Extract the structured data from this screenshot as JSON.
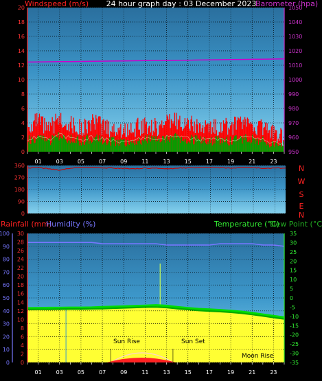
{
  "title": "24 hour graph day : 03 December 2023",
  "colors": {
    "wind": "#ff0000",
    "gust_fill": "#ff0000",
    "avg_fill": "#00a000",
    "barometer": "#cc00cc",
    "direction": "#cc0000",
    "rain": "#ff0000",
    "humidity": "#7777ff",
    "temperature": "#00dd00",
    "dewpoint": "#00aa00",
    "fill_yellow": "#ffff33",
    "sun": "#ffd0d0"
  },
  "chart_data": [
    {
      "type": "line",
      "id": "wind_barometer",
      "left_label": "Windspeed (m/s)",
      "right_label": "Barometer (hpa)",
      "y_left": {
        "min": 0,
        "max": 20,
        "ticks": [
          "0",
          "2",
          "4",
          "6",
          "8",
          "10",
          "12",
          "14",
          "16",
          "18",
          "20"
        ]
      },
      "y_right": {
        "min": 950,
        "max": 1050,
        "ticks": [
          "950",
          "960",
          "970",
          "980",
          "990",
          "1000",
          "1010",
          "1020",
          "1030",
          "1040",
          "1050"
        ]
      },
      "x_ticks": [
        "01",
        "03",
        "05",
        "07",
        "09",
        "11",
        "13",
        "15",
        "17",
        "19",
        "21",
        "23"
      ],
      "x": [
        0,
        1,
        2,
        3,
        4,
        5,
        6,
        7,
        8,
        9,
        10,
        11,
        12,
        13,
        14,
        15,
        16,
        17,
        18,
        19,
        20,
        21,
        22,
        23,
        24
      ],
      "barometer": [
        1012.2,
        1012.3,
        1012.4,
        1012.5,
        1012.5,
        1012.6,
        1012.7,
        1012.8,
        1012.9,
        1013.0,
        1013.1,
        1013.2,
        1013.3,
        1013.3,
        1013.4,
        1013.5,
        1013.6,
        1013.7,
        1013.8,
        1013.9,
        1014.0,
        1014.1,
        1014.2,
        1014.3,
        1014.4
      ],
      "wind_gust": [
        3.5,
        4.2,
        3.0,
        4.6,
        3.8,
        3.2,
        4.0,
        3.6,
        3.1,
        2.9,
        3.3,
        3.7,
        3.4,
        3.9,
        4.4,
        3.8,
        3.5,
        3.2,
        3.6,
        3.4,
        3.9,
        3.7,
        3.3,
        2.6,
        1.9
      ],
      "wind_avg": [
        1.6,
        1.9,
        1.4,
        2.1,
        1.8,
        1.5,
        1.8,
        1.6,
        1.4,
        1.3,
        1.5,
        1.7,
        1.6,
        1.8,
        2.0,
        1.7,
        1.6,
        1.5,
        1.6,
        1.5,
        1.8,
        1.7,
        1.5,
        1.1,
        0.9
      ]
    },
    {
      "type": "line",
      "id": "wind_direction",
      "y_ticks": [
        "0",
        "90",
        "180",
        "270",
        "360"
      ],
      "compass": [
        "N",
        "W",
        "S",
        "E",
        "N"
      ],
      "y": {
        "min": 0,
        "max": 360
      },
      "x": [
        0,
        1,
        2,
        3,
        4,
        5,
        6,
        7,
        8,
        9,
        10,
        11,
        12,
        13,
        14,
        15,
        16,
        17,
        18,
        19,
        20,
        21,
        22,
        23,
        24
      ],
      "direction": [
        340,
        345,
        335,
        325,
        340,
        345,
        345,
        342,
        340,
        338,
        336,
        340,
        340,
        333,
        340,
        343,
        345,
        345,
        343,
        340,
        345,
        343,
        340,
        340,
        340
      ]
    },
    {
      "type": "line",
      "id": "rain_humidity_temperature",
      "left_label_1": "Rainfall (mm)",
      "left_label_2": "Humidity (%)",
      "right_label_1": "Temperature (°C)",
      "right_label_2": "Dew Point (°C)",
      "y_humidity": {
        "min": 0,
        "max": 100,
        "ticks": [
          "0",
          "10",
          "20",
          "30",
          "40",
          "50",
          "60",
          "70",
          "80",
          "90",
          "100"
        ]
      },
      "y_rain": {
        "min": 0,
        "max": 30,
        "ticks": [
          "0",
          "2",
          "4",
          "6",
          "8",
          "10",
          "12",
          "14",
          "16",
          "18",
          "20",
          "22",
          "24",
          "26",
          "28",
          "30"
        ]
      },
      "y_temp": {
        "min": -35,
        "max": 35,
        "ticks": [
          "35",
          "30",
          "25",
          "20",
          "15",
          "10",
          "5",
          "0",
          "-5",
          "-10",
          "-15",
          "-20",
          "-25",
          "-30",
          "-35"
        ]
      },
      "x_ticks": [
        "01",
        "03",
        "05",
        "07",
        "09",
        "11",
        "13",
        "15",
        "17",
        "19",
        "21",
        "23"
      ],
      "x": [
        0,
        1,
        2,
        3,
        4,
        5,
        6,
        7,
        8,
        9,
        10,
        11,
        12,
        13,
        14,
        15,
        16,
        17,
        18,
        19,
        20,
        21,
        22,
        23,
        24
      ],
      "humidity": [
        93,
        93,
        93,
        93,
        93,
        93,
        93,
        92,
        92,
        92,
        92,
        92,
        92,
        91,
        91,
        91,
        91,
        91,
        92,
        92,
        92,
        92,
        91,
        91,
        90
      ],
      "temperature": [
        -5.6,
        -5.5,
        -5.4,
        -5.4,
        -5.3,
        -5.3,
        -5.2,
        -5.0,
        -4.8,
        -4.6,
        -4.4,
        -4.2,
        -4.0,
        -4.3,
        -5.0,
        -5.5,
        -6.0,
        -6.3,
        -6.6,
        -7.0,
        -7.5,
        -8.2,
        -9.0,
        -9.8,
        -10.6
      ],
      "dewpoint": [
        -6.3,
        -6.2,
        -6.2,
        -6.1,
        -6.0,
        -6.0,
        -5.9,
        -5.8,
        -5.6,
        -5.4,
        -5.2,
        -5.0,
        -4.9,
        -5.2,
        -5.8,
        -6.3,
        -6.8,
        -7.1,
        -7.4,
        -7.8,
        -8.3,
        -9.0,
        -9.8,
        -10.6,
        -11.4
      ],
      "rain_spike_hour": 12.4,
      "rain_spike_mm": 23,
      "blue_mark_hour": 3.6,
      "sun_rise_hour": 7.8,
      "sun_set_hour": 13.6,
      "annotations": {
        "sun_rise": "Sun Rise",
        "sun_set": "Sun Set",
        "moon_rise": "Moon Rise"
      }
    }
  ]
}
